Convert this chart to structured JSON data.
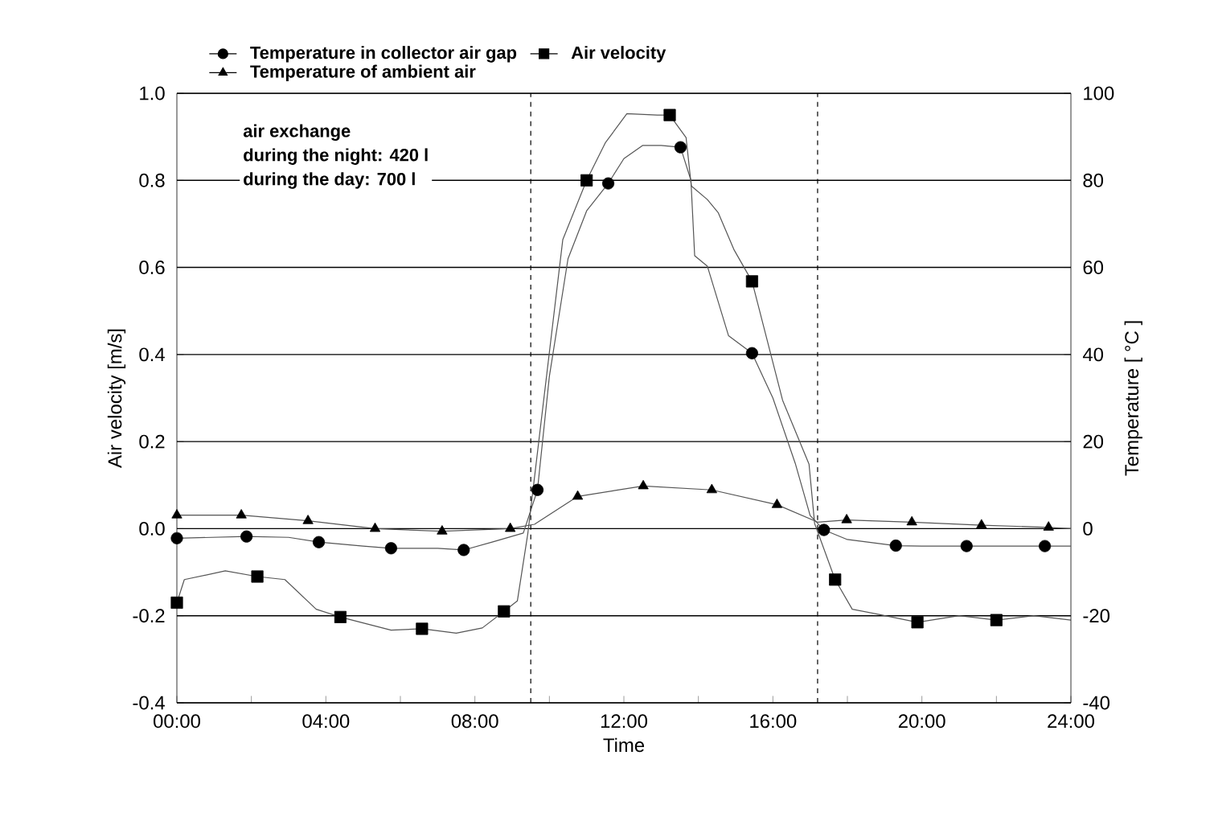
{
  "chart_data": {
    "type": "line",
    "xlabel": "Time",
    "ylabel": "Air velocity [m/s]",
    "y2label": "Temperature [ °C ]",
    "xlim": [
      0,
      24
    ],
    "xticks": [
      {
        "value": 0,
        "label": "00:00"
      },
      {
        "value": 2,
        "label": null
      },
      {
        "value": 4,
        "label": "04:00"
      },
      {
        "value": 6,
        "label": null
      },
      {
        "value": 8,
        "label": "08:00"
      },
      {
        "value": 10,
        "label": null
      },
      {
        "value": 12,
        "label": "12:00"
      },
      {
        "value": 14,
        "label": null
      },
      {
        "value": 16,
        "label": "16:00"
      },
      {
        "value": 18,
        "label": null
      },
      {
        "value": 20,
        "label": "20:00"
      },
      {
        "value": 22,
        "label": null
      },
      {
        "value": 24,
        "label": "24:00"
      }
    ],
    "ylim": [
      -0.4,
      1.0
    ],
    "yticks": [
      {
        "value": -0.4,
        "label": "-0.4"
      },
      {
        "value": -0.2,
        "label": "-0.2"
      },
      {
        "value": 0,
        "label": "0.0"
      },
      {
        "value": 0.2,
        "label": "0.2"
      },
      {
        "value": 0.4,
        "label": "0.4"
      },
      {
        "value": 0.6,
        "label": "0.6"
      },
      {
        "value": 0.8,
        "label": "0.8"
      },
      {
        "value": 1.0,
        "label": "1.0"
      }
    ],
    "y2lim": [
      -40,
      100
    ],
    "y2ticks": [
      -40,
      -20,
      0,
      20,
      40,
      60,
      80,
      100
    ],
    "grid": "y",
    "legend": "top",
    "ref_lines": [
      {
        "axis": "x",
        "value": 9.5,
        "line_style": "dashed",
        "color": "#000000"
      },
      {
        "axis": "x",
        "value": 17.2,
        "line_style": "dashed",
        "color": "#000000"
      }
    ],
    "annotations": [
      "air exchange",
      "during the night: 420 l",
      "during the day:   700 l"
    ],
    "series": [
      {
        "axis": "y2",
        "color": "#555555",
        "marker": "none",
        "x": [
          0,
          1.87,
          3,
          3.81,
          5,
          5.75,
          7,
          7.7,
          8.5,
          9.3,
          9.68,
          10,
          10.5,
          11,
          11.58,
          12,
          12.5,
          13,
          13.52,
          13.8,
          13.9,
          14.24,
          14.81,
          15.44,
          16,
          16.6,
          17.0,
          17.37,
          18,
          19.3,
          20,
          22,
          24
        ],
        "values": [
          -2.2,
          -1.8,
          -2,
          -3.1,
          -4,
          -4.5,
          -4.5,
          -4.9,
          -3,
          -1,
          8.9,
          35,
          62,
          73,
          79.3,
          85,
          88,
          88,
          87.6,
          80,
          62.7,
          60.3,
          44.3,
          40.3,
          30,
          15,
          3,
          -0.3,
          -2.5,
          -3.9,
          -4,
          -4,
          -4
        ]
      },
      {
        "type": "scatter",
        "name": "Temperature in collector air gap",
        "axis": "y2",
        "color": "#000000",
        "marker": "circle",
        "x": [
          0,
          1.87,
          3.81,
          5.75,
          7.7,
          9.68,
          11.58,
          13.52,
          15.44,
          17.37,
          19.3,
          21.2,
          23.3
        ],
        "values": [
          -2.2,
          -1.8,
          -3.1,
          -4.5,
          -4.9,
          8.9,
          79.3,
          87.6,
          40.3,
          -0.3,
          -3.9,
          -4,
          -4
        ]
      },
      {
        "axis": "y",
        "color": "#555555",
        "marker": "none",
        "x": [
          0,
          0.2,
          1.3,
          2.16,
          2.9,
          3.74,
          4.39,
          5.75,
          6.58,
          7.5,
          8.2,
          8.78,
          9.14,
          9.42,
          9.78,
          10.36,
          11.0,
          11.5,
          12.08,
          12.9,
          13.23,
          13.67,
          13.81,
          14.24,
          14.53,
          14.96,
          15.44,
          16.26,
          16.97,
          17.12,
          17.67,
          18.13,
          18.85,
          19.88,
          21,
          22,
          23,
          24
        ],
        "values": [
          -0.17,
          -0.117,
          -0.097,
          -0.11,
          -0.117,
          -0.185,
          -0.203,
          -0.233,
          -0.23,
          -0.24,
          -0.228,
          -0.19,
          -0.166,
          -0.012,
          0.247,
          0.664,
          0.8,
          0.886,
          0.953,
          0.95,
          0.95,
          0.898,
          0.787,
          0.756,
          0.726,
          0.64,
          0.568,
          0.295,
          0.148,
          0.012,
          -0.117,
          -0.185,
          -0.197,
          -0.215,
          -0.2,
          -0.21,
          -0.2,
          -0.21
        ]
      },
      {
        "type": "scatter",
        "name": "Air velocity",
        "axis": "y",
        "color": "#000000",
        "marker": "square",
        "x": [
          0,
          2.16,
          4.39,
          6.58,
          8.78,
          11.0,
          13.23,
          15.44,
          17.67,
          19.88,
          22.0
        ],
        "values": [
          -0.17,
          -0.11,
          -0.203,
          -0.23,
          -0.19,
          0.8,
          0.95,
          0.568,
          -0.117,
          -0.215,
          -0.21
        ]
      },
      {
        "axis": "y2",
        "color": "#555555",
        "marker": "none",
        "x": [
          0,
          1.73,
          3.52,
          5.32,
          7.12,
          8.95,
          9.6,
          10.76,
          12.52,
          14.36,
          16.11,
          17.2,
          17.98,
          19.73,
          21.6,
          23.4,
          24
        ],
        "values": [
          3.1,
          3.1,
          1.8,
          0,
          -0.6,
          0,
          1,
          7.4,
          9.8,
          8.9,
          5.5,
          1.5,
          2,
          1.5,
          0.8,
          0.3,
          0
        ]
      },
      {
        "type": "scatter",
        "name": "Temperature of ambient air",
        "axis": "y2",
        "color": "#000000",
        "marker": "triangle",
        "x": [
          0,
          1.73,
          3.52,
          5.32,
          7.12,
          8.95,
          10.76,
          12.52,
          14.36,
          16.11,
          17.98,
          19.73,
          21.6,
          23.4
        ],
        "values": [
          3.1,
          3.1,
          1.8,
          0,
          -0.6,
          0,
          7.4,
          9.8,
          8.9,
          5.5,
          2,
          1.5,
          0.8,
          0.3
        ]
      }
    ]
  }
}
